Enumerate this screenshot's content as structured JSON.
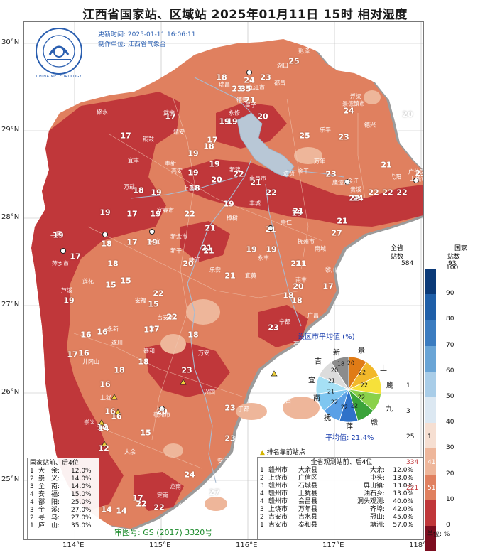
{
  "title": "江西省国家站、区域站    2025年01月11日  15时    相对湿度",
  "meta": {
    "update_time": "更新时间: 2025-01-11  16:06:11",
    "producer": "制作单位: 江西省气象台"
  },
  "logo": {
    "text": "CHINA METEOROLOGY"
  },
  "lat_labels": [
    "30°N",
    "29°N",
    "28°N",
    "27°N",
    "26°N",
    "25°N"
  ],
  "lon_labels": [
    "114°E",
    "115°E",
    "116°E",
    "117°E",
    "118°E"
  ],
  "map_values": [
    {
      "v": "18"
    },
    {
      "v": "24"
    },
    {
      "v": "23"
    },
    {
      "v": "25"
    },
    {
      "v": "23"
    },
    {
      "v": "35"
    },
    {
      "v": "21"
    },
    {
      "v": "17"
    },
    {
      "v": "19"
    },
    {
      "v": "20"
    },
    {
      "v": "24"
    },
    {
      "v": "20"
    },
    {
      "v": "17"
    },
    {
      "v": "17"
    },
    {
      "v": "19"
    },
    {
      "v": "25"
    },
    {
      "v": "23"
    },
    {
      "v": "19"
    },
    {
      "v": "23"
    },
    {
      "v": "18"
    },
    {
      "v": "19"
    },
    {
      "v": "19"
    },
    {
      "v": "22"
    },
    {
      "v": "21"
    },
    {
      "v": "22"
    },
    {
      "v": "23"
    },
    {
      "v": "21"
    },
    {
      "v": "22"
    },
    {
      "v": "22"
    },
    {
      "v": "17"
    },
    {
      "v": "19"
    },
    {
      "v": "18"
    },
    {
      "v": "20"
    },
    {
      "v": "18"
    },
    {
      "v": "19"
    },
    {
      "v": "17"
    },
    {
      "v": "19"
    },
    {
      "v": "19"
    },
    {
      "v": "22"
    },
    {
      "v": "24"
    },
    {
      "v": "22"
    },
    {
      "v": "22"
    },
    {
      "v": "21"
    },
    {
      "v": "18"
    },
    {
      "v": "17"
    },
    {
      "v": "19"
    },
    {
      "v": "21"
    },
    {
      "v": "21"
    },
    {
      "v": "18"
    },
    {
      "v": "17"
    },
    {
      "v": "19"
    },
    {
      "v": "27"
    },
    {
      "v": "19"
    },
    {
      "v": "21"
    },
    {
      "v": "21"
    },
    {
      "v": "17"
    },
    {
      "v": "21"
    },
    {
      "v": "19"
    },
    {
      "v": "19"
    },
    {
      "v": "22"
    },
    {
      "v": "21"
    },
    {
      "v": "20"
    },
    {
      "v": "21"
    },
    {
      "v": "15"
    },
    {
      "v": "18"
    },
    {
      "v": "20"
    },
    {
      "v": "21"
    },
    {
      "v": "18"
    },
    {
      "v": "17"
    },
    {
      "v": "16"
    },
    {
      "v": "15"
    },
    {
      "v": "15"
    },
    {
      "v": "22"
    },
    {
      "v": "19"
    },
    {
      "v": "18"
    },
    {
      "v": "23"
    },
    {
      "v": "17"
    },
    {
      "v": "16"
    },
    {
      "v": "16"
    },
    {
      "v": "17"
    },
    {
      "v": "14"
    },
    {
      "v": "16"
    },
    {
      "v": "18"
    },
    {
      "v": "16"
    },
    {
      "v": "23"
    },
    {
      "v": "18"
    },
    {
      "v": "20"
    },
    {
      "v": "14"
    },
    {
      "v": "16"
    },
    {
      "v": "15"
    },
    {
      "v": "23"
    },
    {
      "v": "22"
    },
    {
      "v": "14"
    },
    {
      "v": "24"
    },
    {
      "v": "27"
    },
    {
      "v": "14"
    },
    {
      "v": "17"
    },
    {
      "v": "22"
    },
    {
      "v": "23"
    },
    {
      "v": "12"
    }
  ],
  "city_labels": [
    "彭泽",
    "湖口",
    "都昌",
    "九江市",
    "瑞昌",
    "武宁",
    "修水",
    "永修",
    "德安",
    "星子",
    "浮梁",
    "景德镇市",
    "婺源",
    "乐平",
    "德兴",
    "玉山",
    "广信区",
    "上饶市",
    "弋阳",
    "贵溪",
    "鹰潭市",
    "余江",
    "万年",
    "余干",
    "南昌市",
    "新建",
    "进贤",
    "高安",
    "宜春市",
    "万载",
    "分宜",
    "新余市",
    "樟树",
    "丰城",
    "崇仁",
    "抚州市",
    "南城",
    "黎川",
    "南丰",
    "广昌",
    "宁都",
    "石城",
    "瑞金",
    "会昌",
    "寻乌",
    "安远",
    "信丰",
    "龙南",
    "全南",
    "定南",
    "赣州市",
    "大余",
    "崇义",
    "上犹",
    "遂川",
    "井冈山",
    "永新",
    "吉安市",
    "泰和",
    "万安",
    "兴国",
    "于都",
    "永丰",
    "乐安",
    "宜黄",
    "峡江",
    "新干",
    "安福",
    "莲花",
    "萍乡市",
    "芦溪",
    "上栗",
    "铜鼓",
    "靖安",
    "奉新",
    "宜丰",
    "上高"
  ],
  "pie": {
    "title": "设区市平均值 (%)",
    "avg_label": "平均值: 21.4%",
    "slices": [
      {
        "name": "景",
        "value": "20",
        "color": "#e07b16"
      },
      {
        "name": "上",
        "value": "22",
        "color": "#f2b82a"
      },
      {
        "name": "鹰",
        "value": "22",
        "color": "#f6e13a"
      },
      {
        "name": "九",
        "value": "22",
        "color": "#8ad14a"
      },
      {
        "name": "赣",
        "value": "22",
        "color": "#3aa33a"
      },
      {
        "name": "萍",
        "value": "22",
        "color": "#2f72c9"
      },
      {
        "name": "抚",
        "value": "22",
        "color": "#5aa0e6"
      },
      {
        "name": "南",
        "value": "21",
        "color": "#7ec6f0"
      },
      {
        "name": "宜",
        "value": "21",
        "color": "#a6e0f5"
      },
      {
        "name": "吉",
        "value": "20",
        "color": "#dcdcdc"
      },
      {
        "name": "新",
        "value": "18",
        "color": "#8c8c8c"
      }
    ]
  },
  "rank_legend": {
    "label": "排名靠前站点"
  },
  "national_list": {
    "title": "国家站前、后4位",
    "rows": [
      {
        "rank": "1",
        "name": "大　余:",
        "val": "12.0%"
      },
      {
        "rank": "2",
        "name": "崇　义:",
        "val": "14.0%"
      },
      {
        "rank": "3",
        "name": "全　南:",
        "val": "14.0%"
      },
      {
        "rank": "4",
        "name": "安　福:",
        "val": "15.0%"
      },
      {
        "rank": "4",
        "name": "鄱　阳:",
        "val": "25.0%"
      },
      {
        "rank": "3",
        "name": "金　溪:",
        "val": "27.0%"
      },
      {
        "rank": "2",
        "name": "寻　乌:",
        "val": "27.0%"
      },
      {
        "rank": "1",
        "name": "庐　山:",
        "val": "35.0%"
      }
    ]
  },
  "all_list": {
    "title": "全省观测站前、后4位",
    "rows": [
      {
        "rank": "1",
        "city": "赣州市",
        "county": "大余县",
        "site": "大余:",
        "val": "12.0%"
      },
      {
        "rank": "2",
        "city": "上饶市",
        "county": "广信区",
        "site": "屯头:",
        "val": "13.0%"
      },
      {
        "rank": "3",
        "city": "赣州市",
        "county": "石城县",
        "site": "屏山镇:",
        "val": "13.0%"
      },
      {
        "rank": "4",
        "city": "赣州市",
        "county": "上犹县",
        "site": "油石乡:",
        "val": "13.0%"
      },
      {
        "rank": "4",
        "city": "赣州市",
        "county": "会昌县",
        "site": "洞头观测:",
        "val": "40.0%"
      },
      {
        "rank": "3",
        "city": "上饶市",
        "county": "万年县",
        "site": "齐埠:",
        "val": "42.0%"
      },
      {
        "rank": "2",
        "city": "吉安市",
        "county": "吉水县",
        "site": "冠山:",
        "val": "45.0%"
      },
      {
        "rank": "1",
        "city": "吉安市",
        "county": "泰和县",
        "site": "塘洲:",
        "val": "57.0%"
      }
    ]
  },
  "approval": "审图号: GS (2017) 3320号",
  "colorbar": {
    "header_province": "全省",
    "header_province2": "站数",
    "header_national": "国家",
    "header_national2": "站数",
    "total_province": "584",
    "total_national": "93",
    "unit": "单位: %",
    "levels": [
      "100",
      "90",
      "80",
      "70",
      "60",
      "50",
      "40",
      "30",
      "20",
      "10",
      "0"
    ],
    "colors": [
      "#0b3a78",
      "#1f5fa8",
      "#3b7cc0",
      "#6aa5d6",
      "#a9cde8",
      "#dce8f2",
      "#f6dfd2",
      "#eeb69a",
      "#e0805f",
      "#c0373a",
      "#7c0d1f"
    ],
    "counts": [
      {
        "band": "50-60",
        "prov": "1",
        "nat": ""
      },
      {
        "band": "40-50",
        "prov": "3",
        "nat": ""
      },
      {
        "band": "30-40",
        "prov": "25",
        "nat": "1"
      },
      {
        "band": "20-30",
        "prov": "334",
        "nat": "41"
      },
      {
        "band": "10-20",
        "prov": "221",
        "nat": "51"
      }
    ]
  }
}
